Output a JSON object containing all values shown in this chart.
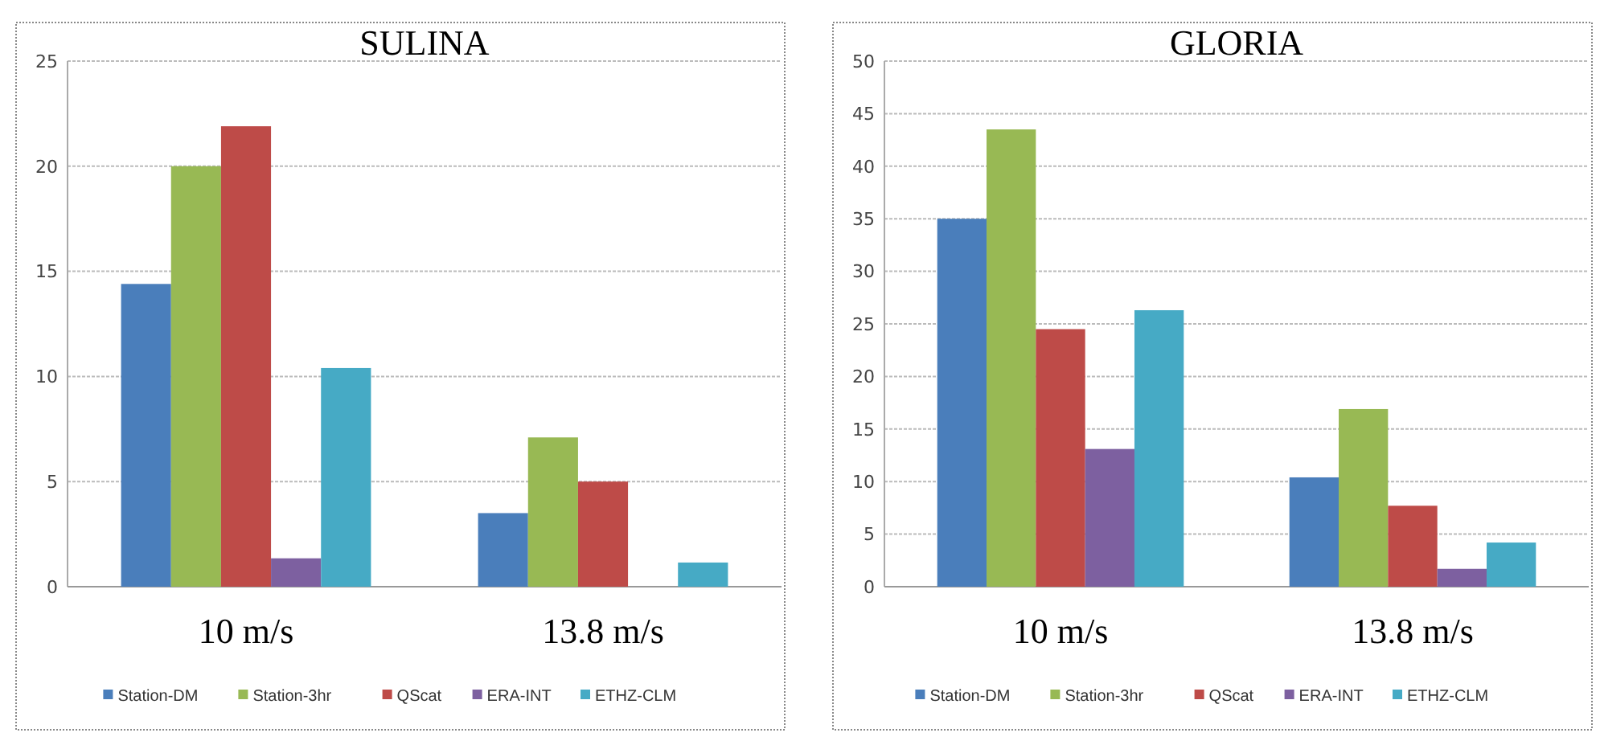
{
  "chart_data": [
    {
      "type": "bar",
      "title": "SULINA",
      "categories": [
        "10 m/s",
        "13.8 m/s"
      ],
      "ylim": [
        0,
        25
      ],
      "yticks": [
        0,
        5,
        10,
        15,
        20,
        25
      ],
      "grid": "y",
      "legend": "bottom",
      "series": [
        {
          "name": "Station-DM",
          "color": "#4a7ebb",
          "values": [
            14.4,
            3.5
          ]
        },
        {
          "name": "Station-3hr",
          "color": "#98b954",
          "values": [
            20,
            7.1
          ]
        },
        {
          "name": "QScat",
          "color": "#be4b48",
          "values": [
            21.9,
            5
          ]
        },
        {
          "name": "ERA-INT",
          "color": "#7d60a0",
          "values": [
            1.35,
            0
          ]
        },
        {
          "name": "ETHZ-CLM",
          "color": "#46aac5",
          "values": [
            10.4,
            1.15
          ]
        }
      ]
    },
    {
      "type": "bar",
      "title": "GLORIA",
      "categories": [
        "10 m/s",
        "13.8 m/s"
      ],
      "ylim": [
        0,
        50
      ],
      "yticks": [
        0,
        5,
        10,
        15,
        20,
        25,
        30,
        35,
        40,
        45,
        50
      ],
      "grid": "y",
      "legend": "bottom",
      "series": [
        {
          "name": "Station-DM",
          "color": "#4a7ebb",
          "values": [
            35,
            10.4
          ]
        },
        {
          "name": "Station-3hr",
          "color": "#98b954",
          "values": [
            43.5,
            16.9
          ]
        },
        {
          "name": "QScat",
          "color": "#be4b48",
          "values": [
            24.5,
            7.7
          ]
        },
        {
          "name": "ERA-INT",
          "color": "#7d60a0",
          "values": [
            13.1,
            1.7
          ]
        },
        {
          "name": "ETHZ-CLM",
          "color": "#46aac5",
          "values": [
            26.3,
            4.2
          ]
        }
      ]
    }
  ]
}
